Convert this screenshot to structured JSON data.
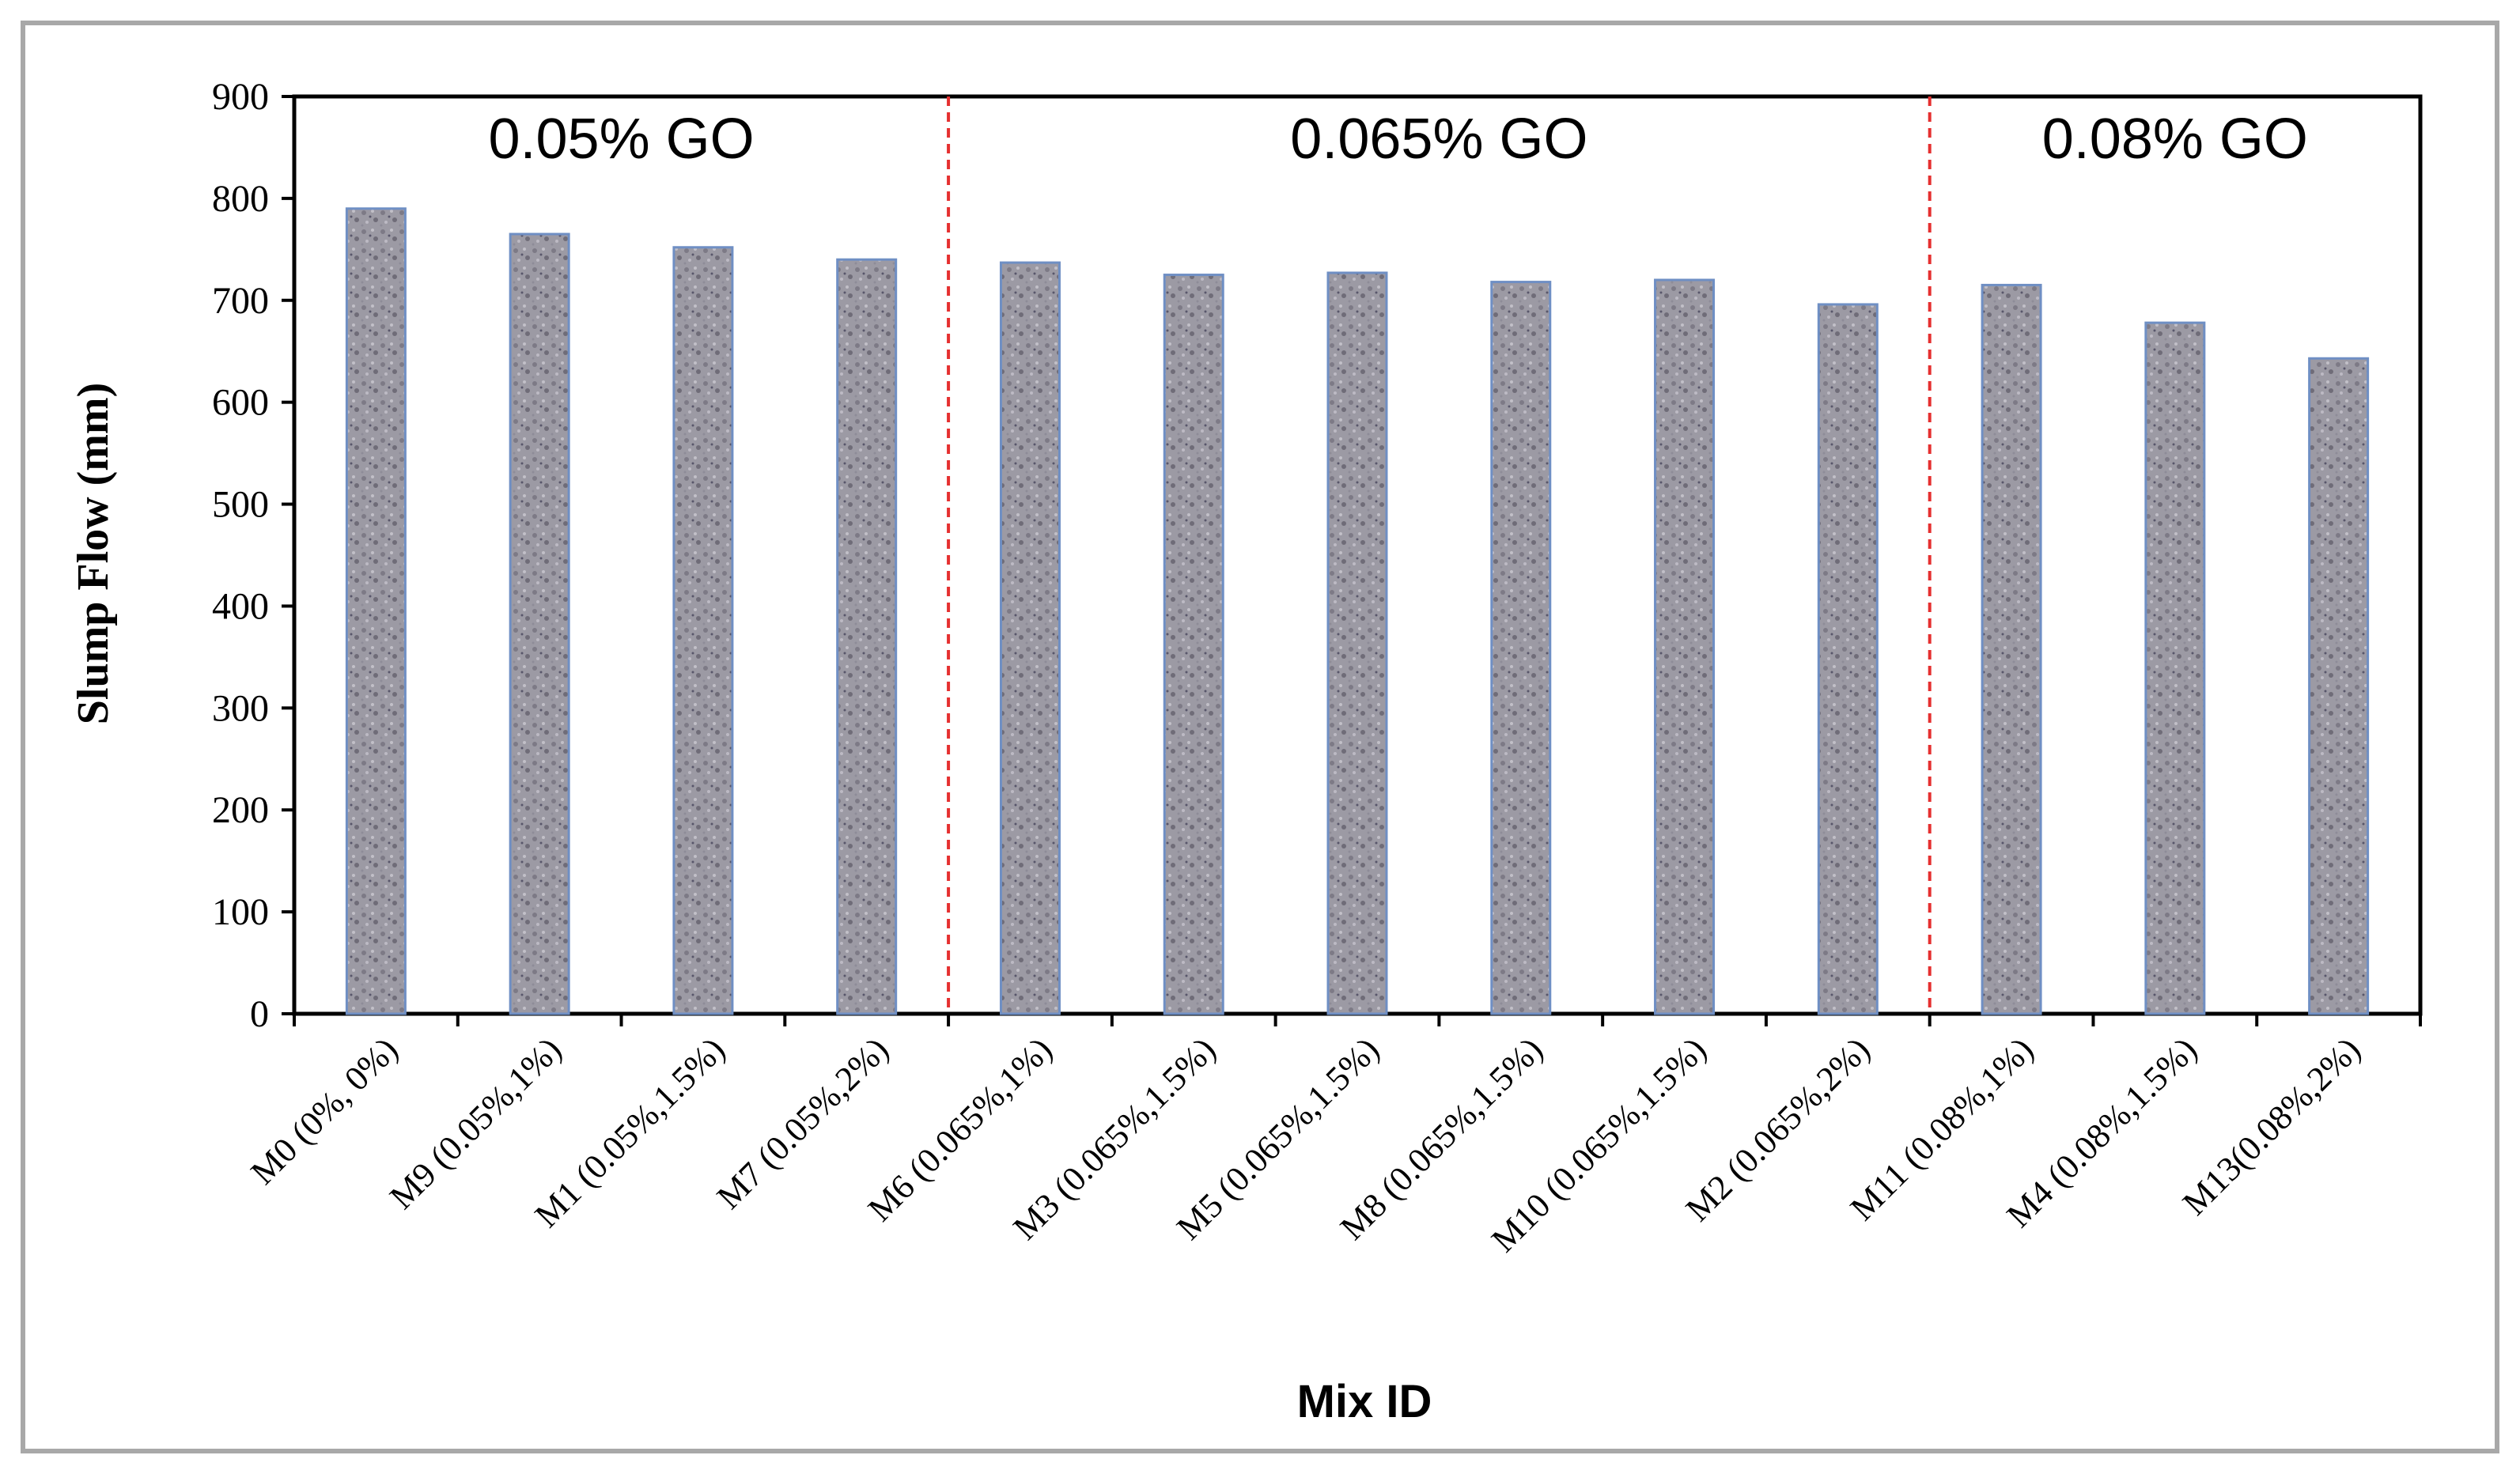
{
  "chart_data": {
    "type": "bar",
    "title": "",
    "xlabel": "Mix ID",
    "ylabel": "Slump Flow (mm)",
    "ylim": [
      0,
      900
    ],
    "yticks": [
      0,
      100,
      200,
      300,
      400,
      500,
      600,
      700,
      800,
      900
    ],
    "categories": [
      "M0 (0%, 0%)",
      "M9 (0.05%,1%)",
      "M1 (0.05%,1.5%)",
      "M7 (0.05%,2%)",
      "M6 (0.065%,1%)",
      "M3 (0.065%,1.5%)",
      "M5 (0.065%,1.5%)",
      "M8 (0.065%,1.5%)",
      "M10 (0.065%,1.5%)",
      "M2 (0.065%,2%)",
      "M11 (0.08%,1%)",
      "M4 (0.08%,1.5%)",
      "M13(0.08%,2%)"
    ],
    "values": [
      790,
      765,
      752,
      740,
      737,
      725,
      727,
      718,
      720,
      696,
      715,
      678,
      643
    ],
    "groups": [
      {
        "label": "0.05% GO"
      },
      {
        "label": "0.065% GO"
      },
      {
        "label": "0.08% GO"
      }
    ],
    "colors": {
      "bar_fill": "#9c9aa4",
      "bar_edge": "#6f8fc4",
      "divider": "#e53030",
      "axis": "#000000"
    },
    "grid": false,
    "legend": "none"
  }
}
